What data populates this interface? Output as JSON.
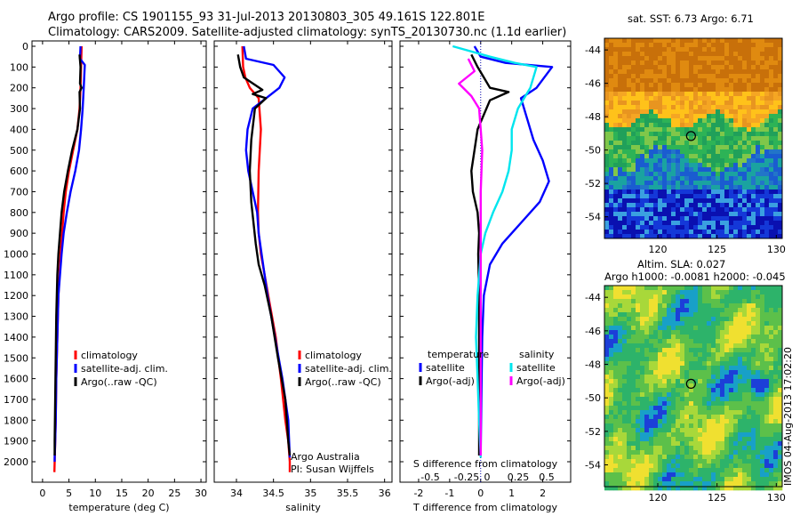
{
  "title_line1": "Argo profile: CS 1901155_93 31-Jul-2013 20130803_305 49.161S 122.801E",
  "title_line2": "Climatology: CARS2009. Satellite-adjusted climatology: synTS_20130730.nc (1.1d earlier)",
  "side_label": "IMOS 04-Aug-2013 17:02:20",
  "colors": {
    "climatology": "#ff0000",
    "satellite": "#0000ff",
    "argo": "#000000",
    "sal_satellite": "#00e5ee",
    "sal_argo": "#ff00ff"
  },
  "chart_data": [
    {
      "name": "temperature-panel",
      "type": "line",
      "xlabel": "temperature (deg C)",
      "xlim": [
        -2,
        31
      ],
      "xticks": [
        0,
        5,
        10,
        15,
        20,
        25,
        30
      ],
      "ylim": [
        2050,
        0
      ],
      "yticks": [
        0,
        100,
        200,
        300,
        400,
        500,
        600,
        700,
        800,
        900,
        1000,
        1100,
        1200,
        1300,
        1400,
        1500,
        1600,
        1700,
        1800,
        1900,
        2000
      ],
      "legend": [
        "climatology",
        "satellite-adj. clim.",
        "Argo(..raw -QC)"
      ],
      "series": [
        {
          "name": "climatology",
          "color": "#ff0000",
          "x": [
            7.4,
            7.3,
            7.2,
            7.0,
            6.6,
            5.8,
            5.0,
            4.4,
            4.0,
            3.7,
            3.4,
            3.2,
            3.0,
            2.8,
            2.6,
            2.5,
            2.4,
            2.3,
            2.25
          ],
          "y": [
            0,
            100,
            200,
            300,
            400,
            500,
            600,
            700,
            800,
            900,
            1000,
            1100,
            1200,
            1400,
            1600,
            1800,
            1900,
            2000,
            2050
          ]
        },
        {
          "name": "satellite-adj. clim.",
          "color": "#0000ff",
          "x": [
            7.2,
            7.1,
            8.0,
            7.8,
            7.6,
            7.3,
            6.9,
            6.2,
            5.3,
            4.6,
            4.0,
            3.6,
            3.3,
            3.0,
            2.8,
            2.6,
            2.5,
            2.4,
            2.3,
            2.3
          ],
          "y": [
            0,
            60,
            90,
            200,
            300,
            400,
            500,
            600,
            700,
            800,
            900,
            1000,
            1100,
            1200,
            1400,
            1600,
            1800,
            1900,
            1980,
            2000
          ]
        },
        {
          "name": "Argo(..raw -QC)",
          "color": "#000000",
          "x": [
            7.0,
            7.2,
            7.1,
            7.4,
            7.0,
            7.1,
            6.6,
            5.6,
            4.8,
            4.1,
            3.6,
            3.3,
            3.0,
            2.8,
            2.6,
            2.5,
            2.4,
            2.3,
            2.3
          ],
          "y": [
            40,
            100,
            180,
            200,
            220,
            300,
            400,
            500,
            600,
            700,
            800,
            900,
            1000,
            1100,
            1300,
            1500,
            1700,
            1900,
            1970
          ]
        }
      ]
    },
    {
      "name": "salinity-panel",
      "type": "line",
      "xlabel": "salinity",
      "xlim": [
        33.7,
        36.1
      ],
      "xticks": [
        34,
        34.5,
        35,
        35.5,
        36
      ],
      "ylim": [
        2050,
        0
      ],
      "legend": [
        "climatology",
        "satellite-adj. clim.",
        "Argo(..raw -QC)"
      ],
      "notes": [
        "Argo Australia",
        "PI: Susan Wijffels"
      ],
      "series": [
        {
          "name": "climatology",
          "color": "#ff0000",
          "x": [
            34.08,
            34.09,
            34.12,
            34.18,
            34.3,
            34.33,
            34.3,
            34.29,
            34.3,
            34.33,
            34.38,
            34.43,
            34.48,
            34.53,
            34.6,
            34.66,
            34.7,
            34.72,
            34.72
          ],
          "y": [
            0,
            100,
            150,
            200,
            250,
            400,
            600,
            800,
            900,
            1000,
            1100,
            1200,
            1300,
            1400,
            1600,
            1800,
            1900,
            2000,
            2050
          ]
        },
        {
          "name": "satellite-adj. clim.",
          "color": "#0000ff",
          "x": [
            34.1,
            34.13,
            34.5,
            34.65,
            34.58,
            34.4,
            34.22,
            34.15,
            34.13,
            34.16,
            34.22,
            34.28,
            34.3,
            34.34,
            34.42,
            34.52,
            34.62,
            34.7,
            34.72
          ],
          "y": [
            0,
            60,
            90,
            150,
            200,
            250,
            300,
            400,
            500,
            600,
            700,
            800,
            900,
            1000,
            1200,
            1400,
            1600,
            1800,
            1980
          ]
        },
        {
          "name": "Argo(..raw -QC)",
          "color": "#000000",
          "x": [
            34.02,
            34.05,
            34.1,
            34.35,
            34.22,
            34.4,
            34.25,
            34.2,
            34.18,
            34.2,
            34.23,
            34.26,
            34.3,
            34.38,
            34.47,
            34.56,
            34.66,
            34.7,
            34.72
          ],
          "y": [
            40,
            100,
            150,
            210,
            230,
            250,
            300,
            450,
            600,
            750,
            850,
            950,
            1050,
            1150,
            1300,
            1500,
            1700,
            1900,
            1970
          ]
        }
      ]
    },
    {
      "name": "difference-panel",
      "type": "line",
      "xlabel": "T difference from climatology",
      "xlabel_top": "S difference from climatology",
      "xlim": [
        -2.6,
        2.9
      ],
      "xticks": [
        -2,
        -1,
        0,
        1,
        2
      ],
      "top_ticks": [
        "-0.5",
        "-0.25",
        "0",
        "0.25",
        "0.5"
      ],
      "ylim": [
        2050,
        0
      ],
      "legend_temperature_title": "temperature",
      "legend_salinity_title": "salinity",
      "legend_temperature": [
        "satellite",
        "Argo(-adj)"
      ],
      "legend_salinity": [
        "satellite",
        "Argo(-adj)"
      ],
      "series": [
        {
          "name": "T satellite",
          "color": "#0000ff",
          "x": [
            -0.2,
            0.0,
            0.8,
            2.3,
            1.8,
            1.3,
            1.5,
            1.7,
            2.0,
            2.2,
            1.9,
            1.3,
            0.7,
            0.3,
            0.1,
            0.05,
            0.02,
            0.0
          ],
          "y": [
            0,
            50,
            80,
            100,
            200,
            250,
            350,
            450,
            550,
            650,
            750,
            850,
            950,
            1050,
            1200,
            1400,
            1700,
            1950
          ]
        },
        {
          "name": "T Argo(-adj)",
          "color": "#000000",
          "x": [
            -0.3,
            -0.1,
            0.1,
            0.3,
            0.9,
            0.3,
            -0.1,
            -0.2,
            -0.3,
            -0.25,
            -0.1,
            -0.05,
            -0.08,
            -0.05,
            -0.05,
            -0.05,
            -0.05
          ],
          "y": [
            40,
            100,
            150,
            200,
            220,
            260,
            400,
            500,
            600,
            700,
            800,
            900,
            1000,
            1200,
            1500,
            1800,
            1970
          ]
        },
        {
          "name": "S satellite",
          "color": "#00e5ee",
          "x": [
            -0.9,
            0.3,
            1.1,
            1.8,
            1.6,
            1.2,
            1.0,
            1.0,
            0.9,
            0.7,
            0.4,
            0.15,
            0.0,
            -0.1,
            -0.15,
            -0.1,
            -0.05,
            0.0
          ],
          "y": [
            0,
            50,
            80,
            100,
            200,
            300,
            400,
            500,
            600,
            700,
            800,
            900,
            1000,
            1200,
            1400,
            1600,
            1800,
            1980
          ]
        },
        {
          "name": "S Argo(-adj)",
          "color": "#ff00ff",
          "x": [
            -0.4,
            -0.2,
            -0.7,
            -0.3,
            -0.05,
            0.0,
            0.05,
            0.0,
            0.0,
            0.0,
            0.0,
            0.0
          ],
          "y": [
            60,
            120,
            180,
            240,
            300,
            400,
            500,
            700,
            1000,
            1400,
            1800,
            1970
          ]
        }
      ]
    },
    {
      "name": "sst-map",
      "type": "heatmap",
      "title": "sat. SST: 6.73 Argo: 6.71",
      "xticks": [
        120,
        125,
        130
      ],
      "yticks": [
        -44,
        -46,
        -48,
        -50,
        -52,
        -54
      ],
      "xlim": [
        115.5,
        130.5
      ],
      "ylim": [
        -55.3,
        -43.3
      ],
      "marker": {
        "lon": 122.801,
        "lat": -49.161
      }
    },
    {
      "name": "sla-map",
      "type": "heatmap",
      "title": "Altim. SLA: 0.027",
      "subtitle": "Argo h1000: -0.0081 h2000: -0.045",
      "xticks": [
        120,
        125,
        130
      ],
      "yticks": [
        -44,
        -46,
        -48,
        -50,
        -52,
        -54
      ],
      "xlim": [
        115.5,
        130.5
      ],
      "ylim": [
        -55.3,
        -43.3
      ],
      "marker": {
        "lon": 122.801,
        "lat": -49.161
      }
    }
  ]
}
